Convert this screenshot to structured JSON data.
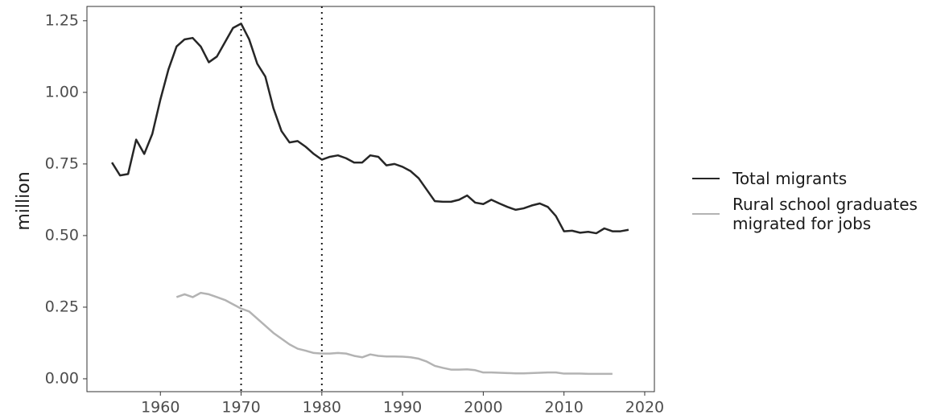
{
  "chart_data": {
    "type": "line",
    "y_label": "million",
    "x": [
      1954,
      1955,
      1956,
      1957,
      1958,
      1959,
      1960,
      1961,
      1962,
      1963,
      1964,
      1965,
      1966,
      1967,
      1968,
      1969,
      1970,
      1971,
      1972,
      1973,
      1974,
      1975,
      1976,
      1977,
      1978,
      1979,
      1980,
      1981,
      1982,
      1983,
      1984,
      1985,
      1986,
      1987,
      1988,
      1989,
      1990,
      1991,
      1992,
      1993,
      1994,
      1995,
      1996,
      1997,
      1998,
      1999,
      2000,
      2001,
      2002,
      2003,
      2004,
      2005,
      2006,
      2007,
      2008,
      2009,
      2010,
      2011,
      2012,
      2013,
      2014,
      2015,
      2016,
      2017,
      2018
    ],
    "series": [
      {
        "name": "Total migrants",
        "color": "#262626",
        "values": [
          0.755,
          0.71,
          0.715,
          0.835,
          0.785,
          0.855,
          0.975,
          1.08,
          1.16,
          1.185,
          1.19,
          1.16,
          1.105,
          1.125,
          1.175,
          1.225,
          1.24,
          1.185,
          1.1,
          1.055,
          0.945,
          0.865,
          0.825,
          0.83,
          0.81,
          0.785,
          0.765,
          0.775,
          0.78,
          0.77,
          0.755,
          0.755,
          0.78,
          0.775,
          0.745,
          0.75,
          0.74,
          0.725,
          0.7,
          0.66,
          0.62,
          0.618,
          0.618,
          0.625,
          0.64,
          0.615,
          0.61,
          0.625,
          0.612,
          0.6,
          0.59,
          0.595,
          0.605,
          0.612,
          0.6,
          0.568,
          0.515,
          0.517,
          0.51,
          0.513,
          0.508,
          0.525,
          0.515,
          0.515,
          0.52
        ]
      },
      {
        "name": "Rural school graduates migrated for jobs",
        "color": "#b3b3b3",
        "values": [
          null,
          null,
          null,
          null,
          null,
          null,
          null,
          null,
          0.285,
          0.295,
          0.285,
          0.3,
          0.295,
          0.285,
          0.275,
          0.26,
          0.245,
          0.235,
          0.21,
          0.185,
          0.16,
          0.14,
          0.12,
          0.105,
          0.098,
          0.09,
          0.088,
          0.088,
          0.09,
          0.088,
          0.08,
          0.075,
          0.085,
          0.08,
          0.078,
          0.078,
          0.077,
          0.075,
          0.07,
          0.06,
          0.045,
          0.038,
          0.032,
          0.032,
          0.033,
          0.03,
          0.022,
          0.022,
          0.021,
          0.02,
          0.019,
          0.019,
          0.02,
          0.021,
          0.022,
          0.022,
          0.018,
          0.018,
          0.018,
          0.017,
          0.017,
          0.017,
          0.017,
          null,
          null
        ]
      }
    ],
    "xlim": [
      1950.9,
      2021.2
    ],
    "xticks": [
      1960,
      1970,
      1980,
      1990,
      2000,
      2010,
      2020
    ],
    "ylim": [
      -0.045,
      1.3
    ],
    "yticks": [
      {
        "value": 0,
        "label": "0.00"
      },
      0.25,
      {
        "value": 0.5,
        "label": "0.50"
      },
      0.75,
      {
        "value": 1,
        "label": "1.00"
      },
      1.25
    ],
    "vlines": [
      1970,
      1980
    ],
    "grid": false
  }
}
